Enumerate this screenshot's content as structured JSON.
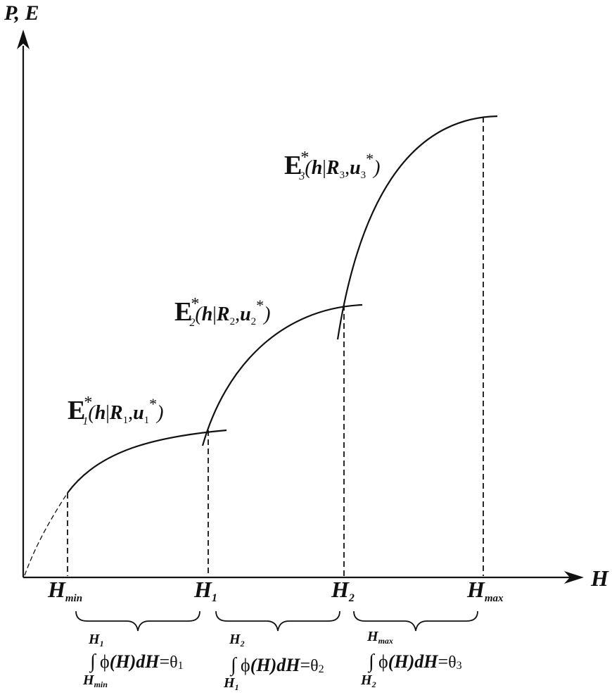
{
  "axes": {
    "y_label": "P, E",
    "x_label": "H"
  },
  "ticks": [
    {
      "main": "H",
      "sub": "min"
    },
    {
      "main": "H",
      "sub": "1"
    },
    {
      "main": "H",
      "sub": "2"
    },
    {
      "main": "H",
      "sub": "max"
    }
  ],
  "curves": [
    {
      "E": "E",
      "star": "*",
      "idx": "1",
      "open": "(",
      "h": "h",
      "bar": "|",
      "R": "R",
      "Rsub": "1",
      "comma": ",",
      "u": "u",
      "usub": "1",
      "ustar": "*",
      "close": ")"
    },
    {
      "E": "E",
      "star": "*",
      "idx": "2",
      "open": "(",
      "h": "h",
      "bar": "|",
      "R": "R",
      "Rsub": "2",
      "comma": ",",
      "u": "u",
      "usub": "2",
      "ustar": "*",
      "close": ")"
    },
    {
      "E": "E",
      "star": "*",
      "idx": "3",
      "open": "(",
      "h": "h",
      "bar": "|",
      "R": "R",
      "Rsub": "3",
      "comma": ",",
      "u": "u",
      "usub": "3",
      "ustar": "*",
      "close": ")"
    }
  ],
  "integrals": [
    {
      "upper_main": "H",
      "upper_sub": "1",
      "lower_main": "H",
      "lower_sub": "min",
      "sign": "∫",
      "phi": "ϕ",
      "body": "(H)dH",
      "eq": "=",
      "theta": "θ",
      "theta_sub": "1"
    },
    {
      "upper_main": "H",
      "upper_sub": "2",
      "lower_main": "H",
      "lower_sub": "1",
      "sign": "∫",
      "phi": "ϕ",
      "body": "(H)dH",
      "eq": "=",
      "theta": "θ",
      "theta_sub": "2"
    },
    {
      "upper_main": "H",
      "upper_sub": "max",
      "lower_main": "H",
      "lower_sub": "2",
      "sign": "∫",
      "phi": "ϕ",
      "body": "(H)dH",
      "eq": "=",
      "theta": "θ",
      "theta_sub": "3"
    }
  ],
  "colors": {
    "ink": "#111111",
    "background": "#ffffff"
  }
}
